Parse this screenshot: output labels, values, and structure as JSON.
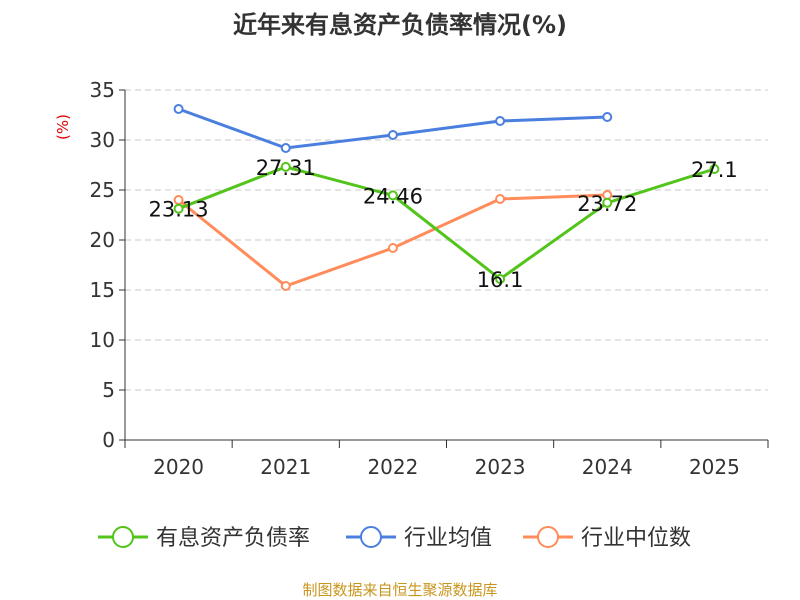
{
  "chart_data": {
    "type": "line",
    "title": "近年来有息资产负债率情况(%)",
    "ylabel": "(%)",
    "xlabel": "",
    "ylim": [
      0,
      35
    ],
    "yticks": [
      0,
      5,
      10,
      15,
      20,
      25,
      30,
      35
    ],
    "categories": [
      "2020",
      "2021",
      "2022",
      "2023",
      "2024",
      "2025"
    ],
    "grid": true,
    "legend_position": "bottom",
    "series": [
      {
        "name": "有息资产负债率",
        "color": "#52c41a",
        "values": [
          23.13,
          27.31,
          24.46,
          16.1,
          23.72,
          27.1
        ],
        "labels": [
          "23.13",
          "27.31",
          "24.46",
          "16.1",
          "23.72",
          "27.1"
        ]
      },
      {
        "name": "行业均值",
        "color": "#4a7fe0",
        "values": [
          33.1,
          29.2,
          30.5,
          31.9,
          32.3,
          null
        ]
      },
      {
        "name": "行业中位数",
        "color": "#ff8c5a",
        "values": [
          24.0,
          15.4,
          19.2,
          24.1,
          24.5,
          null
        ]
      }
    ],
    "source": "制图数据来自恒生聚源数据库"
  }
}
